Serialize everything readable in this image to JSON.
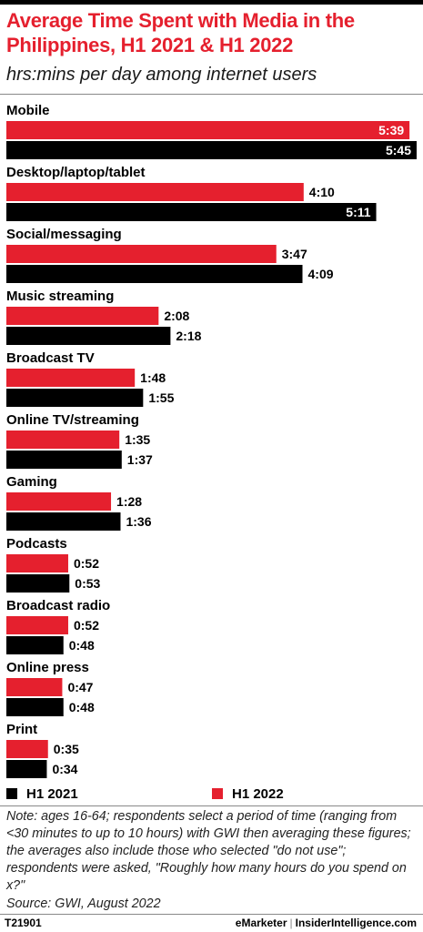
{
  "header": {
    "title": "Average Time Spent with Media in the Philippines, H1 2021 & H1 2022",
    "subtitle": "hrs:mins per day among internet users"
  },
  "chart_data": {
    "type": "bar",
    "orientation": "horizontal",
    "title": "Average Time Spent with Media in the Philippines, H1 2021 & H1 2022",
    "subtitle": "hrs:mins per day among internet users",
    "unit": "hrs:mins",
    "categories": [
      "Mobile",
      "Desktop/laptop/tablet",
      "Social/messaging",
      "Music streaming",
      "Broadcast TV",
      "Online TV/streaming",
      "Gaming",
      "Podcasts",
      "Broadcast radio",
      "Online press",
      "Print"
    ],
    "series": [
      {
        "name": "H1 2022",
        "color": "#e5202e",
        "values": [
          339,
          250,
          227,
          128,
          108,
          95,
          88,
          52,
          52,
          47,
          35
        ],
        "labels": [
          "5:39",
          "4:10",
          "3:47",
          "2:08",
          "1:48",
          "1:35",
          "1:28",
          "0:52",
          "0:52",
          "0:47",
          "0:35"
        ]
      },
      {
        "name": "H1 2021",
        "color": "#000000",
        "values": [
          345,
          311,
          249,
          138,
          115,
          97,
          96,
          53,
          48,
          48,
          34
        ],
        "labels": [
          "5:45",
          "5:11",
          "4:09",
          "2:18",
          "1:55",
          "1:37",
          "1:36",
          "0:53",
          "0:48",
          "0:48",
          "0:34"
        ]
      }
    ],
    "xlim": [
      0,
      345
    ],
    "legend_position": "bottom",
    "grid": false
  },
  "legend": [
    {
      "label": "H1 2021",
      "color": "#000000"
    },
    {
      "label": "H1 2022",
      "color": "#e5202e"
    }
  ],
  "footer": {
    "note": "Note: ages 16-64; respondents select a period of time (ranging from <30 minutes to up to 10 hours) with GWI then averaging these figures; the averages also include those who selected \"do not use\"; respondents were asked, \"Roughly how many hours do you spend on x?\"",
    "source": "Source:  GWI, August 2022",
    "chart_id": "T21901",
    "brand_left": "eMarketer",
    "brand_sep": "|",
    "brand_right": "InsiderIntelligence.com"
  }
}
